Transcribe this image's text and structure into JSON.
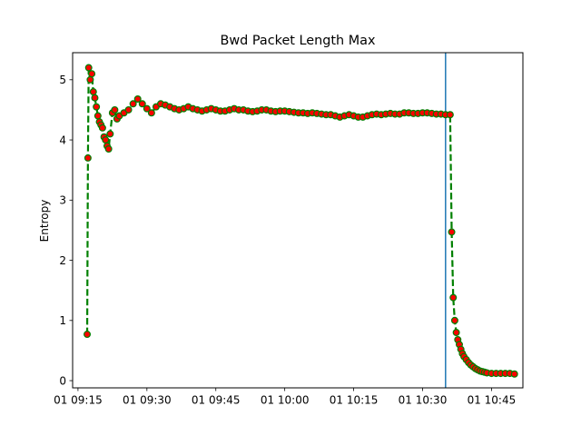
{
  "chart_data": {
    "type": "line",
    "title": "Bwd Packet Length Max",
    "xlabel": "",
    "ylabel": "Entropy",
    "x_ticks": [
      "01 09:15",
      "01 09:30",
      "01 09:45",
      "01 10:00",
      "01 10:15",
      "01 10:30",
      "01 10:45"
    ],
    "x_tick_times": [
      "09:15",
      "09:30",
      "09:45",
      "10:00",
      "10:15",
      "10:30",
      "10:45"
    ],
    "y_ticks": [
      0,
      1,
      2,
      3,
      4,
      5
    ],
    "xlim": [
      "09:13:50",
      "10:51:50"
    ],
    "ylim": [
      -0.12,
      5.45
    ],
    "grid": false,
    "vertical_line": {
      "x": "10:35:00",
      "color": "#1f77b4"
    },
    "series": [
      {
        "line_color": "#008000",
        "marker_color": "#ff0000",
        "marker_edge_color": "#008000",
        "line_style": "dashed",
        "points": [
          [
            "09:17:00",
            0.77
          ],
          [
            "09:17:10",
            3.7
          ],
          [
            "09:17:20",
            5.2
          ],
          [
            "09:17:40",
            5.0
          ],
          [
            "09:18:00",
            5.1
          ],
          [
            "09:18:20",
            4.8
          ],
          [
            "09:18:40",
            4.7
          ],
          [
            "09:19:00",
            4.55
          ],
          [
            "09:19:20",
            4.4
          ],
          [
            "09:19:40",
            4.3
          ],
          [
            "09:20:00",
            4.25
          ],
          [
            "09:20:20",
            4.2
          ],
          [
            "09:20:40",
            4.05
          ],
          [
            "09:21:00",
            4.0
          ],
          [
            "09:21:20",
            3.9
          ],
          [
            "09:21:40",
            3.85
          ],
          [
            "09:22:00",
            4.1
          ],
          [
            "09:22:30",
            4.45
          ],
          [
            "09:23:00",
            4.5
          ],
          [
            "09:23:30",
            4.35
          ],
          [
            "09:24:00",
            4.4
          ],
          [
            "09:25:00",
            4.45
          ],
          [
            "09:26:00",
            4.5
          ],
          [
            "09:27:00",
            4.6
          ],
          [
            "09:28:00",
            4.68
          ],
          [
            "09:29:00",
            4.6
          ],
          [
            "09:30:00",
            4.52
          ],
          [
            "09:31:00",
            4.45
          ],
          [
            "09:32:00",
            4.55
          ],
          [
            "09:33:00",
            4.6
          ],
          [
            "09:34:00",
            4.58
          ],
          [
            "09:35:00",
            4.55
          ],
          [
            "09:36:00",
            4.52
          ],
          [
            "09:37:00",
            4.5
          ],
          [
            "09:38:00",
            4.52
          ],
          [
            "09:39:00",
            4.55
          ],
          [
            "09:40:00",
            4.52
          ],
          [
            "09:41:00",
            4.5
          ],
          [
            "09:42:00",
            4.48
          ],
          [
            "09:43:00",
            4.5
          ],
          [
            "09:44:00",
            4.52
          ],
          [
            "09:45:00",
            4.5
          ],
          [
            "09:46:00",
            4.48
          ],
          [
            "09:47:00",
            4.48
          ],
          [
            "09:48:00",
            4.5
          ],
          [
            "09:49:00",
            4.52
          ],
          [
            "09:50:00",
            4.5
          ],
          [
            "09:51:00",
            4.5
          ],
          [
            "09:52:00",
            4.48
          ],
          [
            "09:53:00",
            4.47
          ],
          [
            "09:54:00",
            4.48
          ],
          [
            "09:55:00",
            4.5
          ],
          [
            "09:56:00",
            4.5
          ],
          [
            "09:57:00",
            4.48
          ],
          [
            "09:58:00",
            4.47
          ],
          [
            "09:59:00",
            4.48
          ],
          [
            "10:00:00",
            4.48
          ],
          [
            "10:01:00",
            4.47
          ],
          [
            "10:02:00",
            4.46
          ],
          [
            "10:03:00",
            4.45
          ],
          [
            "10:04:00",
            4.45
          ],
          [
            "10:05:00",
            4.44
          ],
          [
            "10:06:00",
            4.45
          ],
          [
            "10:07:00",
            4.44
          ],
          [
            "10:08:00",
            4.43
          ],
          [
            "10:09:00",
            4.42
          ],
          [
            "10:10:00",
            4.42
          ],
          [
            "10:11:00",
            4.4
          ],
          [
            "10:12:00",
            4.38
          ],
          [
            "10:13:00",
            4.4
          ],
          [
            "10:14:00",
            4.42
          ],
          [
            "10:15:00",
            4.4
          ],
          [
            "10:16:00",
            4.38
          ],
          [
            "10:17:00",
            4.38
          ],
          [
            "10:18:00",
            4.4
          ],
          [
            "10:19:00",
            4.42
          ],
          [
            "10:20:00",
            4.43
          ],
          [
            "10:21:00",
            4.42
          ],
          [
            "10:22:00",
            4.43
          ],
          [
            "10:23:00",
            4.44
          ],
          [
            "10:24:00",
            4.43
          ],
          [
            "10:25:00",
            4.43
          ],
          [
            "10:26:00",
            4.45
          ],
          [
            "10:27:00",
            4.45
          ],
          [
            "10:28:00",
            4.44
          ],
          [
            "10:29:00",
            4.44
          ],
          [
            "10:30:00",
            4.45
          ],
          [
            "10:31:00",
            4.45
          ],
          [
            "10:32:00",
            4.44
          ],
          [
            "10:33:00",
            4.43
          ],
          [
            "10:34:00",
            4.43
          ],
          [
            "10:35:00",
            4.42
          ],
          [
            "10:36:00",
            4.42
          ],
          [
            "10:36:20",
            2.47
          ],
          [
            "10:36:40",
            1.38
          ],
          [
            "10:37:00",
            1.0
          ],
          [
            "10:37:20",
            0.8
          ],
          [
            "10:37:40",
            0.68
          ],
          [
            "10:38:00",
            0.6
          ],
          [
            "10:38:20",
            0.52
          ],
          [
            "10:38:40",
            0.45
          ],
          [
            "10:39:00",
            0.4
          ],
          [
            "10:39:30",
            0.35
          ],
          [
            "10:40:00",
            0.3
          ],
          [
            "10:40:30",
            0.26
          ],
          [
            "10:41:00",
            0.23
          ],
          [
            "10:41:30",
            0.2
          ],
          [
            "10:42:00",
            0.18
          ],
          [
            "10:42:30",
            0.16
          ],
          [
            "10:43:00",
            0.15
          ],
          [
            "10:43:30",
            0.14
          ],
          [
            "10:44:00",
            0.13
          ],
          [
            "10:45:00",
            0.12
          ],
          [
            "10:46:00",
            0.12
          ],
          [
            "10:47:00",
            0.12
          ],
          [
            "10:48:00",
            0.12
          ],
          [
            "10:49:00",
            0.12
          ],
          [
            "10:50:00",
            0.11
          ]
        ]
      }
    ]
  }
}
